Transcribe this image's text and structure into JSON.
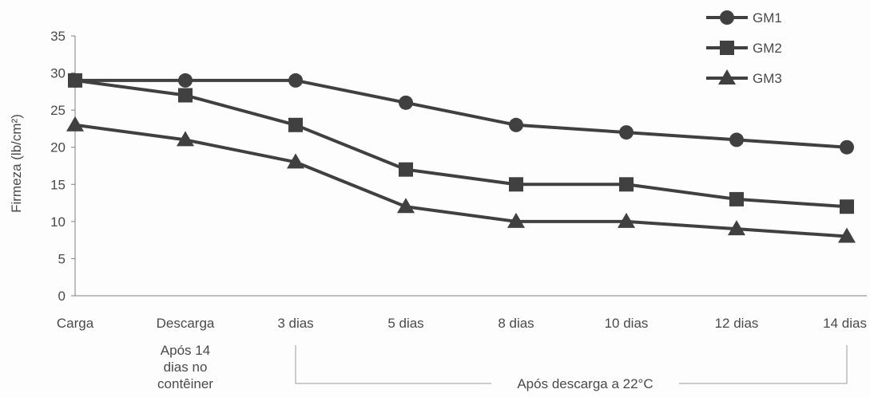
{
  "chart_data": {
    "type": "line",
    "categories": [
      "Carga",
      "Descarga",
      "3 dias",
      "5 dias",
      "8 dias",
      "10 dias",
      "12 dias",
      "14 dias"
    ],
    "series": [
      {
        "name": "GM1",
        "marker": "circle",
        "values": [
          29,
          29,
          29,
          26,
          23,
          22,
          21,
          20
        ]
      },
      {
        "name": "GM2",
        "marker": "square",
        "values": [
          29,
          27,
          23,
          17,
          15,
          15,
          13,
          12
        ]
      },
      {
        "name": "GM3",
        "marker": "triangle",
        "values": [
          23,
          21,
          18,
          12,
          10,
          10,
          9,
          8
        ]
      }
    ],
    "ylabel": "Firmeza (lb/cm²)",
    "yticks": [
      0,
      5,
      10,
      15,
      20,
      25,
      30,
      35
    ],
    "ylim": [
      0,
      35
    ],
    "grid": false,
    "legend": "top-right",
    "annotations": {
      "container_note": [
        "Após 14",
        "dias no",
        "contêiner"
      ],
      "after_unload_note": "Após descarga a 22°C"
    },
    "colors": {
      "series": "#404040",
      "axis": "#808080",
      "text": "#4a4a4a"
    }
  }
}
